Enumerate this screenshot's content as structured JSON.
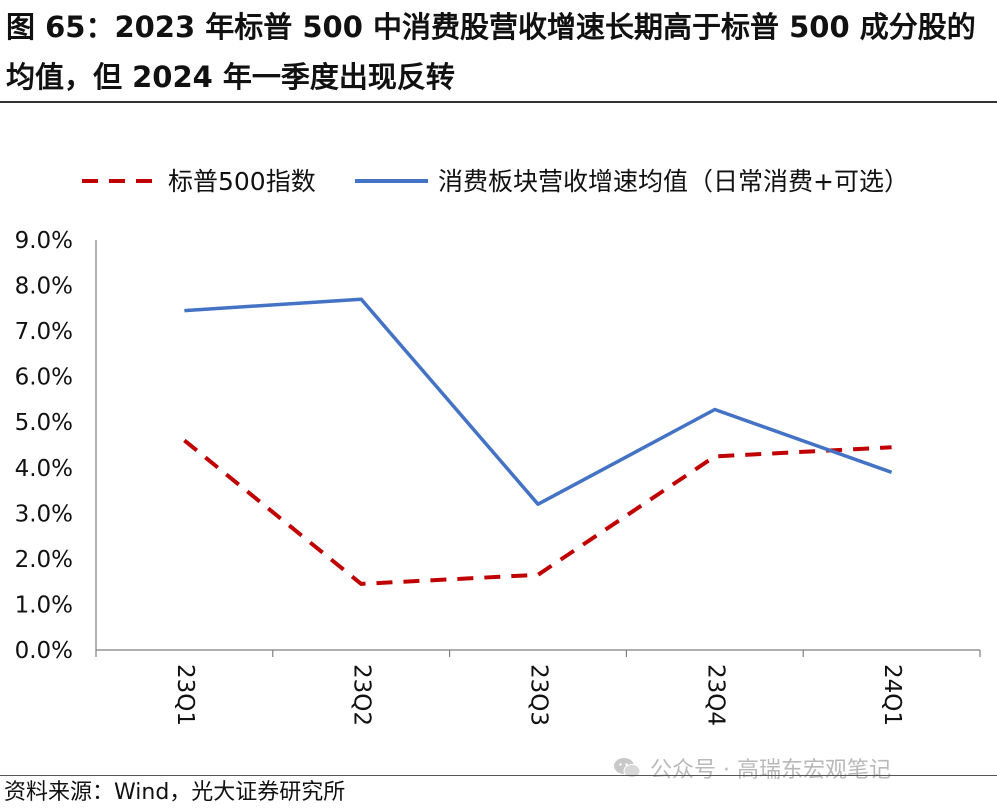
{
  "header": {
    "title": "图 65：2023 年标普 500 中消费股营收增速长期高于标普 500 成分股的均值，但 2024 年一季度出现反转"
  },
  "footer": {
    "source": "资料来源：Wind，光大证券研究所",
    "watermark": "公众号 · 高瑞东宏观笔记"
  },
  "colors": {
    "sp500": "#c00000",
    "consumer": "#4472c4",
    "axis": "#7f7f7f"
  },
  "chart_data": {
    "type": "line",
    "title": "",
    "xlabel": "",
    "ylabel": "",
    "categories": [
      "23Q1",
      "23Q2",
      "23Q3",
      "23Q4",
      "24Q1"
    ],
    "ylim": [
      0,
      9
    ],
    "y_ticks": [
      "0.0%",
      "1.0%",
      "2.0%",
      "3.0%",
      "4.0%",
      "5.0%",
      "6.0%",
      "7.0%",
      "8.0%",
      "9.0%"
    ],
    "legend_position": "top",
    "grid": false,
    "series": [
      {
        "name": "标普500指数",
        "style": "dashed",
        "color": "#c00000",
        "values": [
          4.6,
          1.45,
          1.65,
          4.25,
          4.45
        ]
      },
      {
        "name": "消费板块营收增速均值（日常消费+可选）",
        "style": "solid",
        "color": "#4472c4",
        "values": [
          7.45,
          7.7,
          3.2,
          5.28,
          3.9
        ]
      }
    ]
  }
}
